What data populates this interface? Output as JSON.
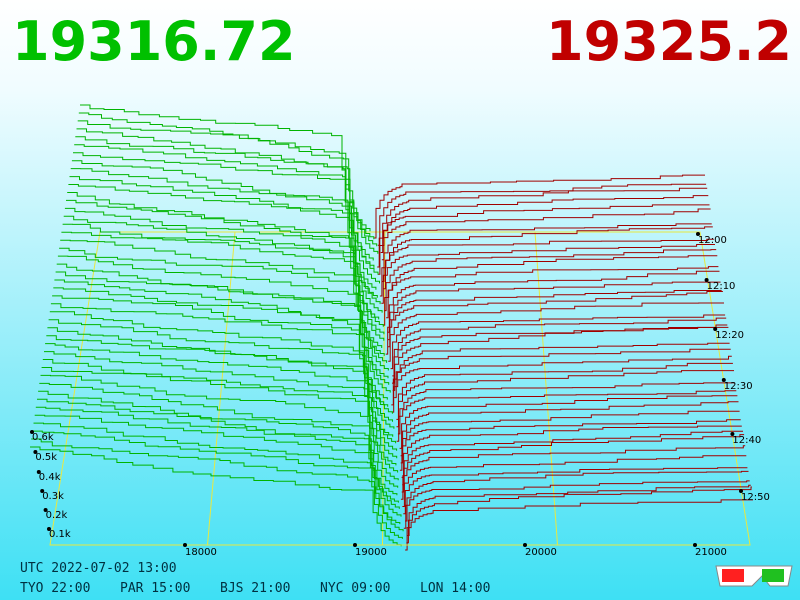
{
  "prices": {
    "bid": "19316.72",
    "ask": "19325.2"
  },
  "price_axis": [
    "18000",
    "19000",
    "20000",
    "21000"
  ],
  "depth_axis": [
    "0.6k",
    "0.5k",
    "0.4k",
    "0.3k",
    "0.2k",
    "0.1k"
  ],
  "time_axis": [
    "12:00",
    "12:10",
    "12:20",
    "12:30",
    "12:40",
    "12:50"
  ],
  "clock": {
    "utc": "UTC 2022-07-02 13:00",
    "cities": [
      "TYO 22:00",
      "PAR 15:00",
      "BJS 21:00",
      "NYC 09:00",
      "LON 14:00"
    ]
  }
}
